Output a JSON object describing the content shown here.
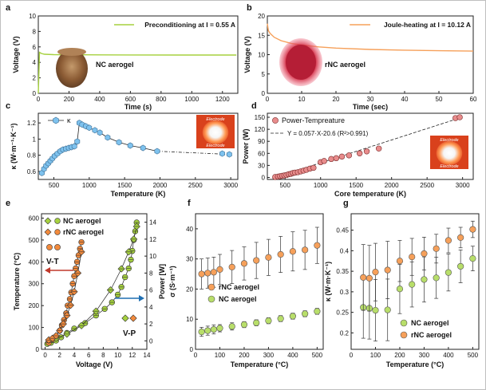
{
  "chart_data": [
    {
      "panel": "a",
      "type": "line",
      "xlabel": "Time (s)",
      "ylabel": "Voltage (V)",
      "xlim": [
        0,
        1300
      ],
      "ylim": [
        0,
        10
      ],
      "xticks": [
        0,
        200,
        400,
        600,
        800,
        1000,
        1200
      ],
      "yticks": [
        0,
        2,
        4,
        6,
        8,
        10
      ],
      "legend": "Preconditioning at I = 0.55 A",
      "annotation": "NC aerogel",
      "color": "#a6d13f",
      "series": [
        {
          "x": [
            0,
            8,
            20,
            40,
            100,
            300,
            600,
            900,
            1200,
            1290
          ],
          "y": [
            0,
            5.3,
            5.15,
            5.05,
            5.0,
            4.98,
            4.96,
            4.95,
            4.95,
            4.95
          ]
        }
      ]
    },
    {
      "panel": "b",
      "type": "line",
      "xlabel": "Time (sec)",
      "ylabel": "Voltage (V)",
      "xlim": [
        0,
        60
      ],
      "ylim": [
        0,
        20
      ],
      "xticks": [
        0,
        10,
        20,
        30,
        40,
        50,
        60
      ],
      "yticks": [
        0,
        5,
        10,
        15,
        20
      ],
      "legend": "Joule-heating at I = 10.12 A",
      "annotation": "rNC aerogel",
      "color": "#f6a05a",
      "series": [
        {
          "x": [
            0,
            0.3,
            0.8,
            2,
            4,
            7,
            10,
            15,
            20,
            30,
            40,
            50,
            60
          ],
          "y": [
            18,
            16.2,
            15.5,
            14.5,
            13.6,
            12.9,
            12.5,
            12.0,
            11.7,
            11.35,
            11.15,
            11.0,
            10.9
          ]
        }
      ]
    },
    {
      "panel": "c",
      "type": "scatter",
      "xlabel": "Temperature (K)",
      "ylabel": "κ (W·m⁻¹·K⁻¹)",
      "xlim": [
        280,
        3100
      ],
      "ylim": [
        0.5,
        1.32
      ],
      "xticks": [
        500,
        1000,
        1500,
        2000,
        2500,
        3000
      ],
      "yticks": [
        0.6,
        0.8,
        1.0,
        1.2
      ],
      "legend": "κ",
      "inset_labels": [
        "Electrode",
        "Electrode"
      ],
      "color": "#7ec2ee",
      "series": [
        {
          "x": [
            330,
            360,
            390,
            420,
            450,
            480,
            510,
            550,
            590,
            630,
            670,
            710,
            750,
            790,
            830,
            860,
            900,
            950,
            1000,
            1080,
            1150,
            1260,
            1420,
            1580,
            1760,
            1960,
            2880,
            2980
          ],
          "y": [
            0.58,
            0.63,
            0.67,
            0.7,
            0.73,
            0.76,
            0.79,
            0.82,
            0.85,
            0.87,
            0.88,
            0.89,
            0.9,
            0.91,
            0.97,
            1.2,
            1.18,
            1.16,
            1.14,
            1.11,
            1.08,
            1.02,
            0.96,
            0.92,
            0.89,
            0.85,
            0.82,
            0.81
          ]
        }
      ]
    },
    {
      "panel": "d",
      "type": "scatter",
      "xlabel": "Core temperature (K)",
      "ylabel": "Power (W)",
      "xlim": [
        250,
        3150
      ],
      "ylim": [
        -5,
        160
      ],
      "xticks": [
        500,
        1000,
        1500,
        2000,
        2500,
        3000
      ],
      "yticks": [
        0,
        30,
        60,
        90,
        120,
        150
      ],
      "legend": "Power-Tempreature",
      "fit": {
        "slope": 0.057,
        "intercept": -20.6,
        "label": "Y = 0.057·X-20.6 (R²>0.991)"
      },
      "inset_labels": [
        "Electrode",
        "Electrode"
      ],
      "color": "#e88c8c",
      "series": [
        {
          "x": [
            360,
            400,
            430,
            460,
            490,
            520,
            550,
            580,
            610,
            640,
            680,
            720,
            760,
            800,
            850,
            900,
            1000,
            1050,
            1150,
            1220,
            1300,
            1400,
            1550,
            1650,
            1820,
            2900,
            2960
          ],
          "y": [
            1,
            2,
            3,
            4,
            5,
            6,
            8,
            9,
            11,
            12,
            13,
            15,
            17,
            19,
            22,
            24,
            38,
            41,
            46,
            48,
            52,
            55,
            60,
            65,
            72,
            148,
            150
          ]
        }
      ]
    },
    {
      "panel": "e",
      "type": "scatter",
      "xlabel": "Voltage (V)",
      "ylabel": "Temperature (°C)",
      "y2label": "Power [W]",
      "xlim": [
        -0.5,
        14
      ],
      "ylim": [
        0,
        620
      ],
      "y2lim": [
        -1,
        15
      ],
      "xticks": [
        0,
        2,
        4,
        6,
        8,
        10,
        12,
        14
      ],
      "yticks": [
        0,
        100,
        200,
        300,
        400,
        500,
        600
      ],
      "y2ticks": [
        0,
        2,
        4,
        6,
        8,
        10,
        12,
        14
      ],
      "labels": [
        "V-T",
        "V-P"
      ],
      "series": [
        {
          "name": "NC aerogel",
          "marker": "circle",
          "axis": "left",
          "color": "#a6d13f",
          "x": [
            0.3,
            0.8,
            1.5,
            2.2,
            3.0,
            4.0,
            5.5,
            7.0,
            8.2,
            9.2,
            10.0,
            10.5,
            11.0,
            11.5,
            11.8,
            12.0,
            12.2,
            12.4,
            12.6
          ],
          "y": [
            25,
            30,
            40,
            55,
            75,
            95,
            120,
            155,
            185,
            215,
            250,
            285,
            330,
            370,
            410,
            450,
            500,
            540,
            580
          ]
        },
        {
          "name": "rNC aerogel",
          "marker": "circle",
          "axis": "left",
          "color": "#f28a3c",
          "x": [
            0.5,
            1.0,
            1.5,
            2.0,
            2.3,
            2.6,
            2.9,
            3.1,
            3.4,
            3.6,
            3.8,
            4.0,
            4.2,
            4.4,
            4.6,
            4.8,
            5.0
          ],
          "y": [
            30,
            45,
            60,
            85,
            110,
            135,
            165,
            200,
            230,
            260,
            300,
            335,
            370,
            400,
            430,
            460,
            490
          ]
        },
        {
          "name": "NC aerogel",
          "marker": "diamond",
          "axis": "right",
          "x": [
            0.5,
            1.5,
            3.0,
            5.0,
            7.0,
            9.0,
            10.5,
            11.5,
            12.2,
            12.6
          ],
          "y": [
            0.1,
            0.3,
            0.8,
            1.8,
            3.5,
            6.0,
            8.5,
            10.5,
            12.0,
            13.5
          ]
        },
        {
          "name": "rNC aerogel",
          "marker": "diamond",
          "axis": "right",
          "x": [
            0.5,
            1.0,
            1.5,
            2.0,
            2.5,
            3.0,
            3.5,
            4.0,
            4.5,
            5.0
          ],
          "y": [
            0.1,
            0.3,
            0.6,
            1.2,
            2.0,
            3.0,
            4.2,
            5.8,
            8.0,
            10.5
          ]
        }
      ]
    },
    {
      "panel": "f",
      "type": "scatter",
      "xlabel": "Temperature (°C)",
      "ylabel": "σ (S·m⁻¹)",
      "xlim": [
        0,
        525
      ],
      "ylim": [
        0,
        45
      ],
      "xticks": [
        0,
        100,
        200,
        300,
        400,
        500
      ],
      "yticks": [
        0,
        10,
        20,
        30,
        40
      ],
      "series": [
        {
          "name": "rNC aerogel",
          "color": "#f6a05a",
          "x": [
            25,
            50,
            75,
            100,
            150,
            200,
            250,
            300,
            350,
            400,
            450,
            500
          ],
          "y": [
            25.0,
            25.3,
            25.6,
            26.5,
            27.3,
            28.5,
            29.5,
            30.5,
            31.5,
            32.5,
            33.0,
            34.5
          ],
          "err": [
            5,
            5,
            5,
            5,
            5.5,
            5.5,
            6,
            6,
            6,
            6.5,
            6.5,
            6
          ]
        },
        {
          "name": "NC aerogel",
          "color": "#b8de6a",
          "x": [
            25,
            50,
            75,
            100,
            150,
            200,
            250,
            300,
            350,
            400,
            450,
            500
          ],
          "y": [
            5.8,
            6.2,
            6.6,
            7.0,
            7.6,
            8.2,
            8.8,
            9.5,
            10.2,
            11.0,
            11.8,
            12.6
          ],
          "err": [
            1.5,
            1.5,
            1.5,
            1.2,
            1.2,
            1.0,
            1.0,
            1.0,
            1.0,
            1.0,
            1.0,
            1.0
          ]
        }
      ]
    },
    {
      "panel": "g",
      "type": "scatter",
      "xlabel": "Temperature (°C)",
      "ylabel": "κ (W·m·K⁻¹)",
      "xlim": [
        0,
        525
      ],
      "ylim": [
        0.16,
        0.49
      ],
      "xticks": [
        0,
        100,
        200,
        300,
        400,
        500
      ],
      "yticks": [
        0.2,
        0.25,
        0.3,
        0.35,
        0.4,
        0.45
      ],
      "series": [
        {
          "name": "NC aerogel",
          "color": "#b8de6a",
          "x": [
            50,
            75,
            100,
            150,
            200,
            250,
            300,
            350,
            400,
            450,
            500
          ],
          "y": [
            0.262,
            0.26,
            0.255,
            0.256,
            0.307,
            0.318,
            0.33,
            0.334,
            0.347,
            0.362,
            0.381
          ],
          "err": [
            0.075,
            0.075,
            0.075,
            0.075,
            0.06,
            0.055,
            0.055,
            0.05,
            0.045,
            0.04,
            0.03
          ]
        },
        {
          "name": "rNC aerogel",
          "color": "#f6a05a",
          "x": [
            50,
            75,
            100,
            150,
            200,
            250,
            300,
            350,
            400,
            450,
            500
          ],
          "y": [
            0.335,
            0.333,
            0.348,
            0.353,
            0.375,
            0.385,
            0.393,
            0.405,
            0.425,
            0.432,
            0.452
          ],
          "err": [
            0.08,
            0.08,
            0.07,
            0.07,
            0.05,
            0.045,
            0.04,
            0.035,
            0.03,
            0.025,
            0.02
          ]
        }
      ]
    }
  ],
  "panel_letters": [
    "a",
    "b",
    "c",
    "d",
    "e",
    "f",
    "g"
  ],
  "legends_f": [
    "rNC aerogel",
    "NC aerogel"
  ],
  "legends_g": [
    "NC aerogel",
    "rNC aerogel"
  ],
  "legends_e": [
    "NC aerogel",
    "rNC aerogel"
  ]
}
